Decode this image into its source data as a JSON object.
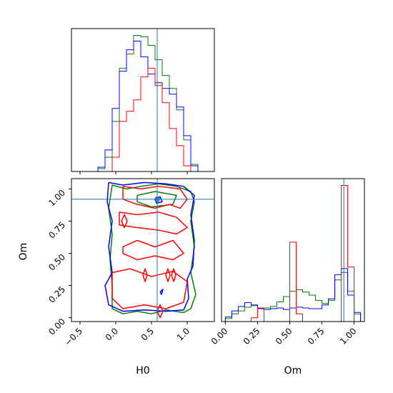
{
  "chart_data": {
    "type": "corner",
    "parameters": [
      "H0",
      "Om"
    ],
    "axis_labels": {
      "x_h0": "H0",
      "x_om": "Om",
      "y_om": "Om"
    },
    "truth": {
      "H0": 0.58,
      "Om": 0.92
    },
    "truth_color": "#1f77b4",
    "h0_axis": {
      "lim": [
        -0.62,
        1.38
      ],
      "ticks": [
        -0.5,
        0.0,
        0.5,
        1.0
      ],
      "tick_labels": [
        "−0.5",
        "0.0",
        "0.5",
        "1.0"
      ]
    },
    "om_axis": {
      "lim": [
        -0.03,
        1.08
      ],
      "ticks": [
        0.0,
        0.25,
        0.5,
        0.75,
        1.0
      ],
      "tick_labels": [
        "0.00",
        "0.25",
        "0.50",
        "0.75",
        "1.00"
      ]
    },
    "series": [
      {
        "name": "green",
        "color": "#008000",
        "h0_hist": {
          "edges": [
            -0.25,
            -0.15,
            -0.05,
            0.05,
            0.15,
            0.25,
            0.35,
            0.45,
            0.55,
            0.65,
            0.75,
            0.85,
            0.95,
            1.05,
            1.15
          ],
          "counts": [
            2,
            10,
            35,
            72,
            82,
            95,
            94,
            88,
            78,
            67,
            58,
            43,
            22,
            5
          ]
        },
        "om_hist": {
          "edges": [
            0.0,
            0.05,
            0.1,
            0.15,
            0.2,
            0.25,
            0.3,
            0.35,
            0.4,
            0.45,
            0.5,
            0.55,
            0.6,
            0.65,
            0.7,
            0.75,
            0.8,
            0.85,
            0.9,
            0.95,
            1.0,
            1.05
          ],
          "counts": [
            4,
            10,
            14,
            19,
            21,
            17,
            18,
            20,
            26,
            33,
            40,
            42,
            39,
            35,
            28,
            24,
            28,
            55,
            65,
            40,
            10
          ]
        }
      },
      {
        "name": "blue",
        "color": "#0000ff",
        "h0_hist": {
          "edges": [
            -0.25,
            -0.15,
            -0.05,
            0.05,
            0.15,
            0.25,
            0.35,
            0.45,
            0.55,
            0.65,
            0.75,
            0.85,
            0.95,
            1.05,
            1.15
          ],
          "counts": [
            3,
            15,
            44,
            70,
            85,
            91,
            80,
            68,
            62,
            58,
            54,
            45,
            25,
            4
          ]
        },
        "om_hist": {
          "edges": [
            0.0,
            0.05,
            0.1,
            0.15,
            0.2,
            0.25,
            0.3,
            0.35,
            0.4,
            0.45,
            0.5,
            0.55,
            0.6,
            0.65,
            0.7,
            0.75,
            0.8,
            0.85,
            0.9,
            0.95,
            1.0,
            1.05
          ],
          "counts": [
            6,
            14,
            20,
            25,
            22,
            17,
            16,
            17,
            18,
            16,
            18,
            19,
            18,
            17,
            17,
            22,
            30,
            62,
            70,
            35,
            12
          ]
        }
      },
      {
        "name": "red",
        "color": "#ff0000",
        "h0_hist": {
          "edges": [
            -0.25,
            -0.15,
            -0.05,
            0.05,
            0.15,
            0.25,
            0.35,
            0.45,
            0.55,
            0.65,
            0.75,
            0.85,
            0.95,
            1.05,
            1.15
          ],
          "counts": [
            0,
            0,
            10,
            35,
            42,
            50,
            66,
            72,
            60,
            48,
            30,
            18,
            4,
            0
          ]
        },
        "om_hist": {
          "edges": [
            0.0,
            0.05,
            0.1,
            0.15,
            0.2,
            0.25,
            0.3,
            0.35,
            0.4,
            0.45,
            0.5,
            0.55,
            0.6,
            0.65,
            0.7,
            0.75,
            0.8,
            0.85,
            0.9,
            0.95,
            1.0,
            1.05
          ],
          "counts": [
            0,
            0,
            0,
            0,
            5,
            18,
            0,
            0,
            0,
            0,
            105,
            10,
            0,
            0,
            0,
            0,
            0,
            0,
            180,
            72,
            0
          ]
        }
      }
    ],
    "contours": [
      {
        "series": "green",
        "paths": [
          [
            [
              -0.05,
              1.03
            ],
            [
              0.15,
              1.0
            ],
            [
              0.35,
              1.02
            ],
            [
              0.6,
              1.04
            ],
            [
              0.85,
              1.02
            ],
            [
              1.05,
              0.98
            ],
            [
              1.1,
              0.9
            ],
            [
              1.05,
              0.75
            ],
            [
              1.1,
              0.55
            ],
            [
              1.05,
              0.35
            ],
            [
              1.12,
              0.18
            ],
            [
              1.05,
              0.07
            ],
            [
              0.95,
              0.04
            ],
            [
              0.7,
              0.06
            ],
            [
              0.5,
              0.03
            ],
            [
              0.3,
              0.05
            ],
            [
              0.1,
              0.03
            ],
            [
              -0.05,
              0.07
            ],
            [
              -0.05,
              0.25
            ],
            [
              -0.08,
              0.45
            ],
            [
              -0.05,
              0.65
            ],
            [
              -0.1,
              0.85
            ],
            [
              -0.05,
              1.03
            ]
          ],
          [
            [
              0.3,
              0.95
            ],
            [
              0.55,
              0.98
            ],
            [
              0.85,
              0.95
            ],
            [
              0.8,
              0.88
            ],
            [
              0.5,
              0.86
            ],
            [
              0.3,
              0.9
            ],
            [
              0.3,
              0.95
            ]
          ]
        ]
      },
      {
        "series": "blue",
        "paths": [
          [
            [
              -0.1,
              1.05
            ],
            [
              0.1,
              1.03
            ],
            [
              0.4,
              1.05
            ],
            [
              0.7,
              1.04
            ],
            [
              0.95,
              1.02
            ],
            [
              1.1,
              0.95
            ],
            [
              1.05,
              0.8
            ],
            [
              1.1,
              0.6
            ],
            [
              1.08,
              0.4
            ],
            [
              1.0,
              0.3
            ],
            [
              1.02,
              0.15
            ],
            [
              0.95,
              0.06
            ],
            [
              0.7,
              0.05
            ],
            [
              0.4,
              0.06
            ],
            [
              0.1,
              0.05
            ],
            [
              -0.1,
              0.1
            ],
            [
              -0.15,
              0.25
            ],
            [
              -0.05,
              0.35
            ],
            [
              -0.1,
              0.55
            ],
            [
              -0.05,
              0.75
            ],
            [
              -0.12,
              0.9
            ],
            [
              -0.1,
              1.05
            ]
          ],
          [
            [
              0.55,
              0.92
            ],
            [
              0.62,
              0.94
            ],
            [
              0.65,
              0.9
            ],
            [
              0.57,
              0.89
            ],
            [
              0.55,
              0.92
            ]
          ],
          [
            [
              0.62,
              0.2
            ],
            [
              0.66,
              0.22
            ],
            [
              0.64,
              0.18
            ],
            [
              0.62,
              0.2
            ]
          ]
        ]
      },
      {
        "series": "red",
        "paths": [
          [
            [
              0.1,
              1.02
            ],
            [
              0.35,
              1.0
            ],
            [
              0.6,
              1.02
            ],
            [
              0.9,
              1.0
            ],
            [
              1.0,
              0.92
            ],
            [
              0.9,
              0.85
            ],
            [
              0.75,
              0.88
            ],
            [
              0.55,
              0.85
            ],
            [
              0.3,
              0.88
            ],
            [
              0.1,
              0.92
            ],
            [
              0.1,
              1.02
            ]
          ],
          [
            [
              0.05,
              0.82
            ],
            [
              0.3,
              0.8
            ],
            [
              0.6,
              0.82
            ],
            [
              0.85,
              0.78
            ],
            [
              1.0,
              0.7
            ],
            [
              0.85,
              0.65
            ],
            [
              0.6,
              0.68
            ],
            [
              0.3,
              0.7
            ],
            [
              0.05,
              0.72
            ],
            [
              0.05,
              0.82
            ]
          ],
          [
            [
              0.1,
              0.55
            ],
            [
              0.3,
              0.6
            ],
            [
              0.55,
              0.55
            ],
            [
              0.8,
              0.6
            ],
            [
              0.95,
              0.5
            ],
            [
              0.8,
              0.45
            ],
            [
              0.55,
              0.48
            ],
            [
              0.3,
              0.45
            ],
            [
              0.1,
              0.5
            ],
            [
              0.1,
              0.55
            ]
          ],
          [
            [
              -0.05,
              0.35
            ],
            [
              0.2,
              0.38
            ],
            [
              0.5,
              0.32
            ],
            [
              0.8,
              0.36
            ],
            [
              1.0,
              0.28
            ],
            [
              0.95,
              0.12
            ],
            [
              0.7,
              0.07
            ],
            [
              0.4,
              0.1
            ],
            [
              0.1,
              0.07
            ],
            [
              -0.05,
              0.15
            ],
            [
              -0.05,
              0.35
            ]
          ],
          [
            [
              0.08,
              0.75
            ],
            [
              0.12,
              0.8
            ],
            [
              0.16,
              0.75
            ],
            [
              0.12,
              0.7
            ],
            [
              0.08,
              0.75
            ]
          ],
          [
            [
              0.38,
              0.33
            ],
            [
              0.41,
              0.38
            ],
            [
              0.44,
              0.33
            ],
            [
              0.41,
              0.28
            ],
            [
              0.38,
              0.33
            ]
          ],
          [
            [
              0.7,
              0.33
            ],
            [
              0.73,
              0.38
            ],
            [
              0.76,
              0.33
            ],
            [
              0.73,
              0.28
            ],
            [
              0.7,
              0.33
            ]
          ],
          [
            [
              0.78,
              0.33
            ],
            [
              0.81,
              0.38
            ],
            [
              0.84,
              0.33
            ],
            [
              0.81,
              0.28
            ],
            [
              0.78,
              0.33
            ]
          ],
          [
            [
              0.58,
              0.05
            ],
            [
              0.62,
              0.1
            ],
            [
              0.66,
              0.05
            ],
            [
              0.62,
              0.0
            ],
            [
              0.58,
              0.05
            ]
          ]
        ]
      }
    ]
  }
}
